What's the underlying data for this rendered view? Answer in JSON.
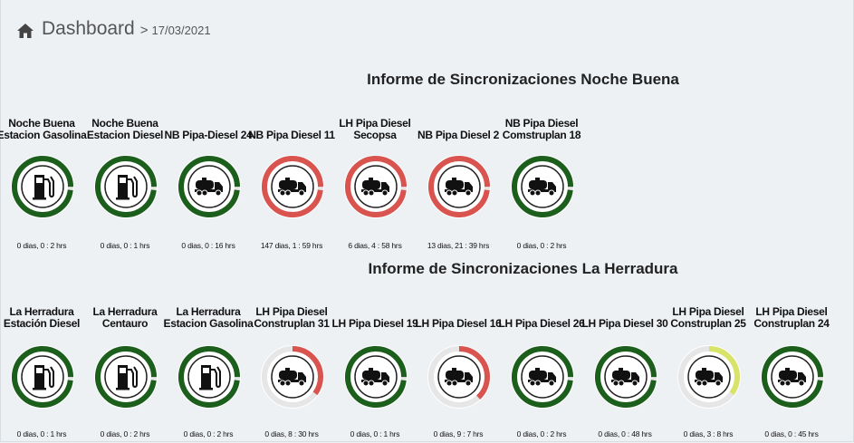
{
  "header": {
    "title": "Dashboard",
    "separator": ">",
    "date": "17/03/2021"
  },
  "colors": {
    "ok": "#1c5e1c",
    "alert": "#d9534f",
    "warning": "#d8e36a",
    "track": "#e6e6e6"
  },
  "sections": [
    {
      "title": "Informe de Sincronizaciones Noche Buena",
      "devices": [
        {
          "label": "Noche Buena Estacion Gasolina",
          "icon": "fuel-pump-icon",
          "status": "ok",
          "level": 1.0,
          "time": "0 dias, 0 : 2 hrs"
        },
        {
          "label": "Noche Buena Estacion Diesel",
          "icon": "fuel-pump-icon",
          "status": "ok",
          "level": 1.0,
          "time": "0 dias, 0 : 1 hrs"
        },
        {
          "label": "NB Pipa-Diesel 24",
          "icon": "tanker-truck-icon",
          "status": "ok",
          "level": 1.0,
          "time": "0 dias, 0 : 16 hrs"
        },
        {
          "label": "NB Pipa Diesel 11",
          "icon": "tanker-truck-icon",
          "status": "alert",
          "level": 1.0,
          "time": "147 dias, 1 : 59 hrs"
        },
        {
          "label": "LH Pipa Diesel Secopsa",
          "icon": "tanker-truck-icon",
          "status": "alert",
          "level": 1.0,
          "time": "6 dias, 4 : 58 hrs"
        },
        {
          "label": "NB Pipa Diesel 2",
          "icon": "tanker-truck-icon",
          "status": "alert",
          "level": 1.0,
          "time": "13 dias, 21 : 39 hrs"
        },
        {
          "label": "NB Pipa Diesel Comstruplan 18",
          "icon": "tanker-truck-icon",
          "status": "ok",
          "level": 1.0,
          "time": "0 dias, 0 : 2 hrs"
        }
      ]
    },
    {
      "title": "Informe de Sincronizaciones La Herradura",
      "devices": [
        {
          "label": "La Herradura Estación Diesel",
          "icon": "fuel-pump-icon",
          "status": "ok",
          "level": 1.0,
          "time": "0 dias, 0 : 1 hrs"
        },
        {
          "label": "La Herradura Centauro",
          "icon": "fuel-pump-icon",
          "status": "ok",
          "level": 1.0,
          "time": "0 dias, 0 : 2 hrs"
        },
        {
          "label": "La Herradura Estacion Gasolina",
          "icon": "fuel-pump-icon",
          "status": "ok",
          "level": 1.0,
          "time": "0 dias, 0 : 2 hrs"
        },
        {
          "label": "LH Pipa Diesel Construplan 31",
          "icon": "tanker-truck-icon",
          "status": "alert",
          "level": 0.35,
          "time": "0 dias, 8 : 30 hrs"
        },
        {
          "label": "LH Pipa Diesel 19",
          "icon": "tanker-truck-icon",
          "status": "ok",
          "level": 1.0,
          "time": "0 dias, 0 : 1 hrs"
        },
        {
          "label": "LH Pipa Diesel 16",
          "icon": "tanker-truck-icon",
          "status": "alert",
          "level": 0.38,
          "time": "0 dias, 9 : 7 hrs"
        },
        {
          "label": "LH Pipa Diesel 26",
          "icon": "tanker-truck-icon",
          "status": "ok",
          "level": 1.0,
          "time": "0 dias, 0 : 2 hrs"
        },
        {
          "label": "LH Pipa Diesel 30",
          "icon": "tanker-truck-icon",
          "status": "ok",
          "level": 1.0,
          "time": "0 dias, 0 : 48 hrs"
        },
        {
          "label": "LH Pipa Diesel Construplan 25",
          "icon": "tanker-truck-icon",
          "status": "warning",
          "level": 0.35,
          "time": "0 dias, 3 : 8 hrs"
        },
        {
          "label": "LH Pipa Diesel Construplan 24",
          "icon": "tanker-truck-icon",
          "status": "ok",
          "level": 1.0,
          "time": "0 dias, 0 : 45 hrs"
        }
      ]
    }
  ]
}
